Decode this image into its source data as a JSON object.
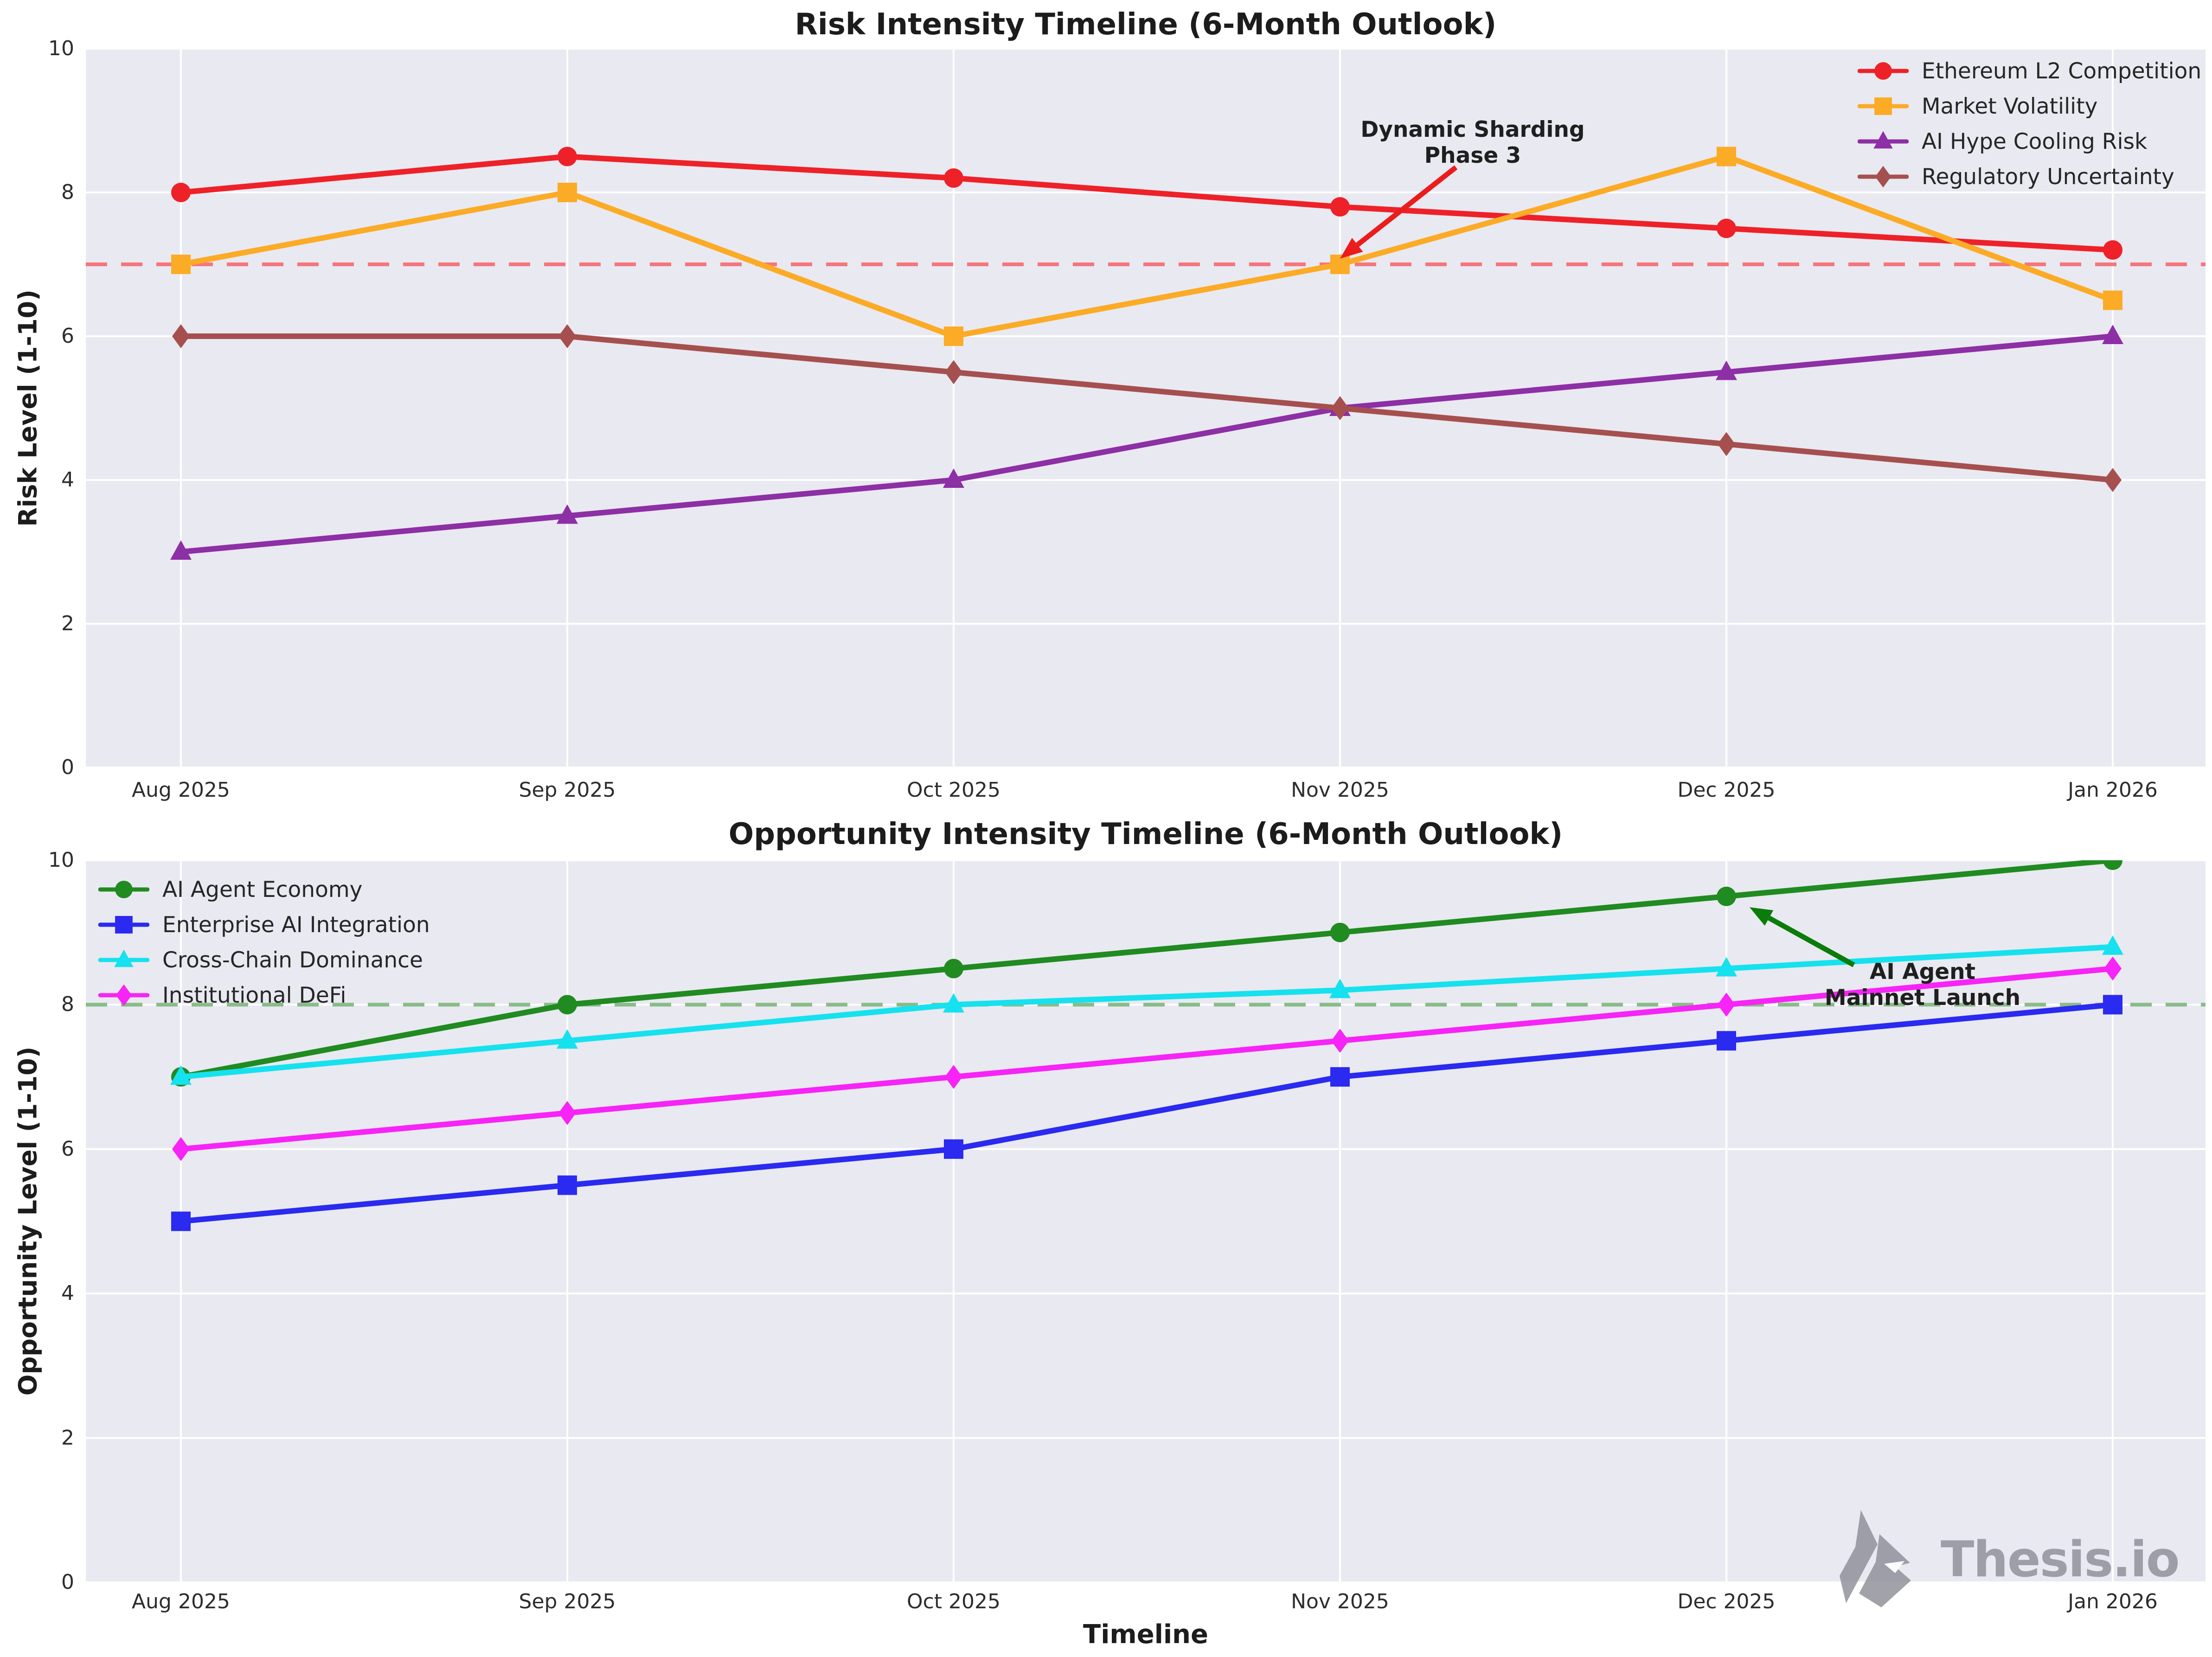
{
  "figure": {
    "background": "#ffffff",
    "plot_background": "#e9e9f1",
    "gridline_color": "#ffffff"
  },
  "watermark": {
    "brand": "Thesis.io",
    "color": "#8e8e99",
    "icon": "fox-logo-icon"
  },
  "chart_data": [
    {
      "type": "line",
      "title": "Risk Intensity Timeline (6-Month Outlook)",
      "xlabel": "",
      "ylabel": "Risk Level (1-10)",
      "categories": [
        "Aug 2025",
        "Sep 2025",
        "Oct 2025",
        "Nov 2025",
        "Dec 2025",
        "Jan 2026"
      ],
      "yticks": [
        0,
        2,
        4,
        6,
        8,
        10
      ],
      "ylim": [
        0,
        10
      ],
      "grid": true,
      "legend_position": "upper right",
      "series": [
        {
          "name": "Ethereum L2 Competition",
          "color": "#ee2128",
          "marker": "circle",
          "values": [
            8.0,
            8.5,
            8.2,
            7.8,
            7.5,
            7.2
          ]
        },
        {
          "name": "Market Volatility",
          "color": "#fbab26",
          "marker": "square",
          "values": [
            7.0,
            8.0,
            6.0,
            7.0,
            8.5,
            6.5
          ]
        },
        {
          "name": "AI Hype Cooling Risk",
          "color": "#8d2fa5",
          "marker": "triangle",
          "values": [
            3.0,
            3.5,
            4.0,
            5.0,
            5.5,
            6.0
          ]
        },
        {
          "name": "Regulatory Uncertainty",
          "color": "#a5504f",
          "marker": "diamond",
          "values": [
            6.0,
            6.0,
            5.5,
            5.0,
            4.5,
            4.0
          ]
        }
      ],
      "threshold": {
        "value": 7,
        "color": "#f4767c",
        "style": "dashed"
      },
      "annotation": {
        "line1": "Dynamic Sharding",
        "line2": "Phase 3",
        "arrow_color": "#ea1c1c",
        "arrow_tail": {
          "month_index": 3.3,
          "value": 8.35
        },
        "arrow_tip": {
          "month_index": 3.0,
          "value": 7.08
        }
      }
    },
    {
      "type": "line",
      "title": "Opportunity Intensity Timeline (6-Month Outlook)",
      "xlabel": "Timeline",
      "ylabel": "Opportunity Level (1-10)",
      "categories": [
        "Aug 2025",
        "Sep 2025",
        "Oct 2025",
        "Nov 2025",
        "Dec 2025",
        "Jan 2026"
      ],
      "yticks": [
        0,
        2,
        4,
        6,
        8,
        10
      ],
      "ylim": [
        0,
        10
      ],
      "grid": true,
      "legend_position": "upper left",
      "series": [
        {
          "name": "AI Agent Economy",
          "color": "#208b20",
          "marker": "circle",
          "values": [
            7.0,
            8.0,
            8.5,
            9.0,
            9.5,
            10.0
          ]
        },
        {
          "name": "Enterprise AI Integration",
          "color": "#2a2af0",
          "marker": "square",
          "values": [
            5.0,
            5.5,
            6.0,
            7.0,
            7.5,
            8.0
          ]
        },
        {
          "name": "Cross-Chain Dominance",
          "color": "#16e1ee",
          "marker": "triangle",
          "values": [
            7.0,
            7.5,
            8.0,
            8.2,
            8.5,
            8.8
          ]
        },
        {
          "name": "Institutional DeFi",
          "color": "#f624f6",
          "marker": "diamond",
          "values": [
            6.0,
            6.5,
            7.0,
            7.5,
            8.0,
            8.5
          ]
        }
      ],
      "threshold": {
        "value": 8,
        "color": "#88bc88",
        "style": "dashed"
      },
      "annotation": {
        "line1": "AI Agent",
        "line2": "Mainnet Launch",
        "arrow_color": "#0a7c0a",
        "arrow_tail": {
          "month_index": 4.33,
          "value": 8.55
        },
        "arrow_tip": {
          "month_index": 4.06,
          "value": 9.35
        }
      }
    }
  ]
}
